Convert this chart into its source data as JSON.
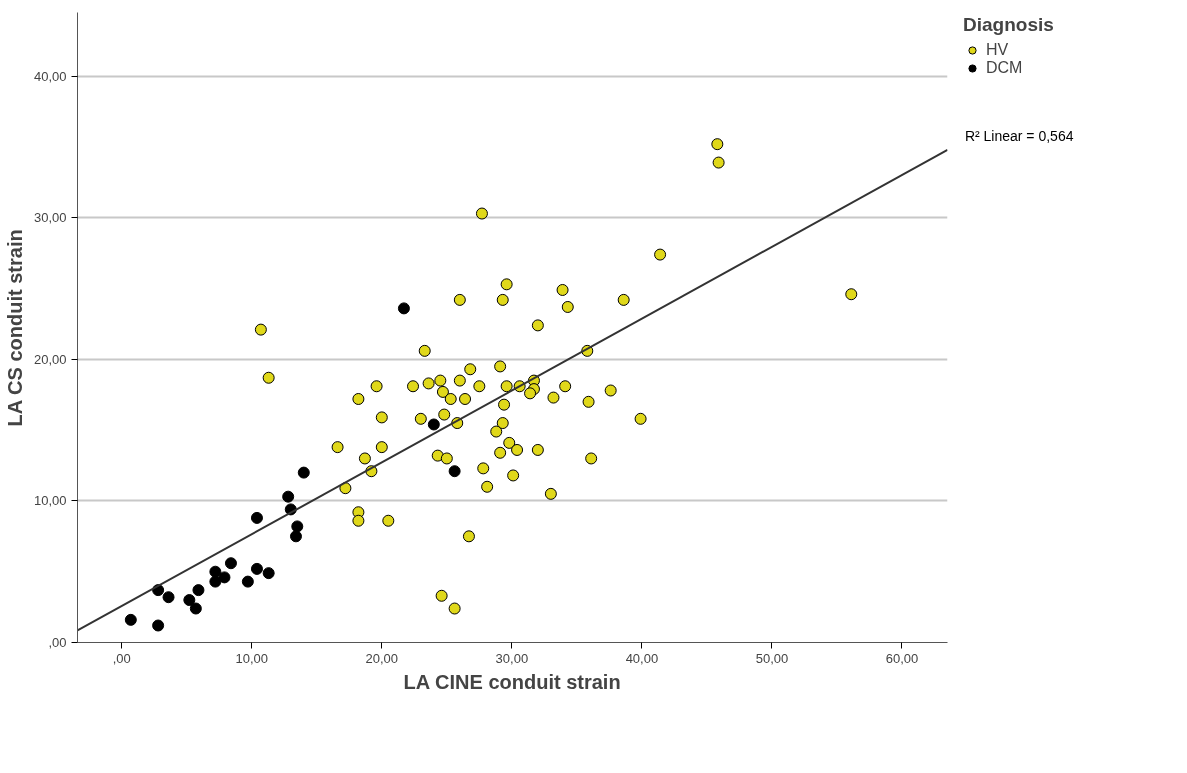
{
  "chart_data": {
    "type": "scatter",
    "xlabel": "LA CINE conduit strain",
    "ylabel": "LA CS conduit strain",
    "legend_title": "Diagnosis",
    "annotations": [
      "R² Linear = 0,564"
    ],
    "xlim": [
      -3.4,
      63.5
    ],
    "ylim": [
      0,
      44.5
    ],
    "xticks": [
      {
        "value": 0,
        "label": ",00"
      },
      {
        "value": 10,
        "label": "10,00"
      },
      {
        "value": 20,
        "label": "20,00"
      },
      {
        "value": 30,
        "label": "30,00"
      },
      {
        "value": 40,
        "label": "40,00"
      },
      {
        "value": 50,
        "label": "50,00"
      },
      {
        "value": 60,
        "label": "60,00"
      }
    ],
    "yticks": [
      {
        "value": 0,
        "label": ",00"
      },
      {
        "value": 10,
        "label": "10,00"
      },
      {
        "value": 20,
        "label": "20,00"
      },
      {
        "value": 30,
        "label": "30,00"
      },
      {
        "value": 40,
        "label": "40,00"
      }
    ],
    "grid": "y",
    "legend": "top right",
    "marker": "circle",
    "series": [
      {
        "name": "HV",
        "color": "#e0d81a",
        "x": [
          10.7,
          11.3,
          16.6,
          17.2,
          18.7,
          19.2,
          20.0,
          20.0,
          18.2,
          19.6,
          18.2,
          18.2,
          20.5,
          23.3,
          22.4,
          23.6,
          24.5,
          24.7,
          23.0,
          24.8,
          24.3,
          25.0,
          24.6,
          25.6,
          25.3,
          27.7,
          41.4,
          29.6,
          33.9,
          29.3,
          26.0,
          34.3,
          38.6,
          32.0,
          35.8,
          29.1,
          26.8,
          26.0,
          26.4,
          27.5,
          29.6,
          30.6,
          31.7,
          31.7,
          31.4,
          33.2,
          34.1,
          35.9,
          37.6,
          39.9,
          29.4,
          25.8,
          29.3,
          28.8,
          29.8,
          30.4,
          32.0,
          29.1,
          36.1,
          27.8,
          30.1,
          28.1,
          33.0,
          26.7,
          45.8,
          45.9,
          56.1
        ],
        "values": [
          22.1,
          18.7,
          13.8,
          10.9,
          13.0,
          12.1,
          13.8,
          15.9,
          17.2,
          18.1,
          9.2,
          8.6,
          8.6,
          20.6,
          18.1,
          18.3,
          18.5,
          17.7,
          15.8,
          16.1,
          13.2,
          13.0,
          3.3,
          2.4,
          17.2,
          30.3,
          27.4,
          25.3,
          24.9,
          24.2,
          24.2,
          23.7,
          24.2,
          22.4,
          20.6,
          19.5,
          19.3,
          18.5,
          17.2,
          18.1,
          18.1,
          18.1,
          18.5,
          17.9,
          17.6,
          17.3,
          18.1,
          17.0,
          17.8,
          15.8,
          16.8,
          15.5,
          15.5,
          14.9,
          14.1,
          13.6,
          13.6,
          13.4,
          13.0,
          12.3,
          11.8,
          11.0,
          10.5,
          7.5,
          35.2,
          33.9,
          24.6
        ]
      },
      {
        "name": "DCM",
        "color": "#000000",
        "x": [
          21.7,
          24.0,
          25.6,
          14.0,
          12.8,
          13.0,
          10.4,
          13.5,
          13.4,
          8.4,
          7.2,
          7.9,
          7.2,
          10.4,
          11.3,
          9.7,
          2.8,
          3.6,
          5.9,
          5.2,
          5.7,
          0.7,
          2.8
        ],
        "values": [
          23.6,
          15.4,
          12.1,
          12.0,
          10.3,
          9.4,
          8.8,
          8.2,
          7.5,
          5.6,
          5.0,
          4.6,
          4.3,
          5.2,
          4.9,
          4.3,
          3.7,
          3.2,
          3.7,
          3.0,
          2.4,
          1.6,
          1.2
        ]
      },
      {
        "type": "line",
        "marker": "none",
        "color": "#333333",
        "x": [
          -3.4,
          63.5
        ],
        "values": [
          0.85,
          34.8
        ]
      }
    ]
  }
}
